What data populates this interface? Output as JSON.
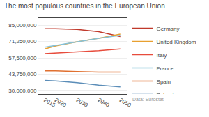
{
  "chart_data": {
    "type": "line",
    "title": "The most populous countries in the European Union",
    "x": [
      2015,
      2020,
      2030,
      2040,
      2050
    ],
    "series": [
      {
        "name": "Germany",
        "color": "#c0392b",
        "values": [
          82000000,
          82000000,
          81500000,
          79500000,
          75500000
        ]
      },
      {
        "name": "United Kingdom",
        "color": "#e8a030",
        "values": [
          65000000,
          67500000,
          71000000,
          74000000,
          77500000
        ]
      },
      {
        "name": "Italy",
        "color": "#e74c3c",
        "values": [
          61000000,
          61500000,
          62500000,
          63500000,
          65000000
        ]
      },
      {
        "name": "France",
        "color": "#85c1d8",
        "values": [
          66500000,
          68000000,
          71000000,
          74000000,
          76500000
        ]
      },
      {
        "name": "Spain",
        "color": "#e07030",
        "values": [
          46500000,
          46500000,
          46000000,
          45500000,
          45500000
        ]
      },
      {
        "name": "Poland",
        "color": "#5b8db8",
        "values": [
          38500000,
          38000000,
          36500000,
          34500000,
          33000000
        ]
      }
    ],
    "xlim": [
      2012,
      2053
    ],
    "xticks": [
      2015,
      2020,
      2030,
      2040,
      2050
    ],
    "ylim": [
      27000000,
      91000000
    ],
    "yticks": [
      {
        "value": 30000000,
        "label": "30,000,000"
      },
      {
        "value": 43750000,
        "label": "43,750,000"
      },
      {
        "value": 57500000,
        "label": "57,500,000"
      },
      {
        "value": 71250000,
        "label": "71,250,000"
      },
      {
        "value": 85000000,
        "label": "85,000,000"
      }
    ],
    "grid": true,
    "legend": "right",
    "annotations": [
      "Data: Eurostat"
    ]
  }
}
